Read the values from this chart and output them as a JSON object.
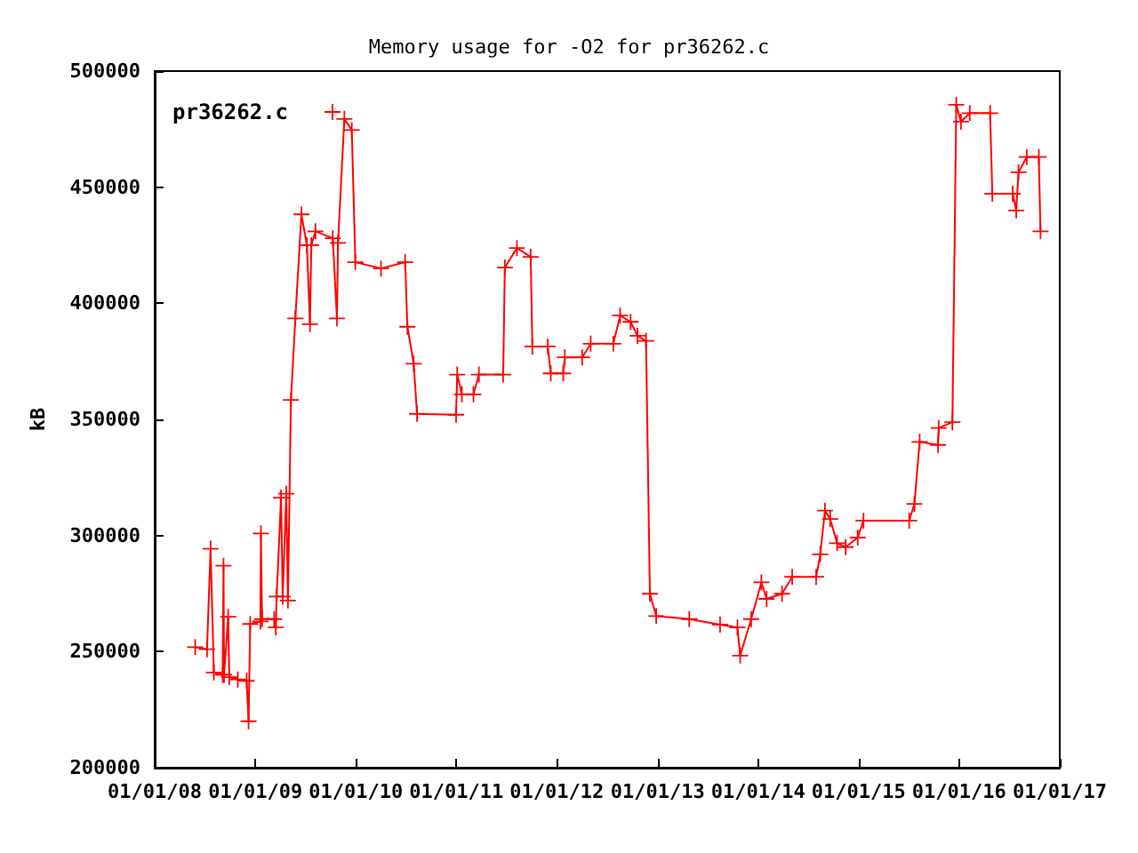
{
  "chart_data": {
    "type": "line",
    "title": "Memory usage for -O2 for pr36262.c",
    "ylabel": "kB",
    "xlim": [
      "2008-01-01",
      "2017-01-01"
    ],
    "xticks": [
      {
        "value": "2008-01-01",
        "label": "01/01/08"
      },
      {
        "value": "2009-01-01",
        "label": "01/01/09"
      },
      {
        "value": "2010-01-01",
        "label": "01/01/10"
      },
      {
        "value": "2011-01-01",
        "label": "01/01/11"
      },
      {
        "value": "2012-01-01",
        "label": "01/01/12"
      },
      {
        "value": "2013-01-01",
        "label": "01/01/13"
      },
      {
        "value": "2014-01-01",
        "label": "01/01/14"
      },
      {
        "value": "2015-01-01",
        "label": "01/01/15"
      },
      {
        "value": "2016-01-01",
        "label": "01/01/16"
      },
      {
        "value": "2017-01-01",
        "label": "01/01/17"
      }
    ],
    "ylim": [
      200000,
      500000
    ],
    "yticks": [
      200000,
      250000,
      300000,
      350000,
      400000,
      450000,
      500000
    ],
    "grid": false,
    "legend": "top left",
    "marker": "cross",
    "line_style": "solid",
    "x": [
      "2008-05-27",
      "2008-07-09",
      "2008-07-22",
      "2008-08-03",
      "2008-09-04",
      "2008-09-07",
      "2008-09-09",
      "2008-09-24",
      "2008-09-28",
      "2008-10-29",
      "2008-11-30",
      "2008-12-07",
      "2008-12-13",
      "2009-01-19",
      "2009-01-21",
      "2009-01-25",
      "2009-03-10",
      "2009-03-16",
      "2009-03-19",
      "2009-04-04",
      "2009-04-10",
      "2009-04-23",
      "2009-04-29",
      "2009-05-10",
      "2009-05-26",
      "2009-06-17",
      "2009-07-07",
      "2009-07-18",
      "2009-07-23",
      "2009-08-07",
      "2009-10-09",
      "2009-10-24",
      "2009-10-28",
      "2009-11-20",
      "2009-12-17",
      "2009-12-30",
      "2010-04-02",
      "2010-06-29",
      "2010-07-07",
      "2010-07-30",
      "2010-08-11",
      "2010-12-31",
      "2011-01-04",
      "2011-01-21",
      "2011-03-04",
      "2011-03-24",
      "2011-06-20",
      "2011-06-26",
      "2011-08-09",
      "2011-09-28",
      "2011-10-04",
      "2011-11-29",
      "2011-12-10",
      "2012-01-24",
      "2012-01-30",
      "2012-04-02",
      "2012-05-03",
      "2012-07-24",
      "2012-08-18",
      "2012-09-25",
      "2012-10-20",
      "2012-11-20",
      "2012-12-04",
      "2012-12-27",
      "2013-04-26",
      "2013-08-16",
      "2013-10-18",
      "2013-10-28",
      "2013-12-07",
      "2014-01-13",
      "2014-02-01",
      "2014-03-29",
      "2014-05-05",
      "2014-07-31",
      "2014-08-15",
      "2014-09-01",
      "2014-09-20",
      "2014-10-15",
      "2014-11-15",
      "2014-12-29",
      "2015-01-19",
      "2015-07-04",
      "2015-07-23",
      "2015-08-11",
      "2015-10-17",
      "2015-10-19",
      "2015-12-08",
      "2015-12-22",
      "2016-01-08",
      "2016-02-09",
      "2016-04-23",
      "2016-05-01",
      "2016-07-14",
      "2016-07-27",
      "2016-08-04",
      "2016-09-03",
      "2016-10-17",
      "2016-10-23"
    ],
    "series": [
      {
        "name": "pr36262.c",
        "color": "#ff0000",
        "values": [
          251900,
          251000,
          294300,
          241000,
          240000,
          287000,
          240000,
          265000,
          239000,
          238000,
          237400,
          220000,
          261900,
          263000,
          300900,
          264000,
          264000,
          260400,
          273700,
          316300,
          273700,
          318000,
          272000,
          358400,
          393500,
          438300,
          425000,
          391000,
          425000,
          431000,
          428000,
          393500,
          426000,
          479400,
          474600,
          417700,
          415000,
          417700,
          389900,
          374000,
          352400,
          352000,
          369300,
          360800,
          360800,
          369300,
          369300,
          415400,
          423800,
          420000,
          381400,
          381400,
          369800,
          369800,
          376700,
          376700,
          382600,
          382600,
          394700,
          392000,
          386000,
          383800,
          274900,
          265300,
          264000,
          261600,
          260400,
          248300,
          264000,
          279800,
          272700,
          274900,
          282200,
          282200,
          291900,
          310700,
          307100,
          296700,
          295000,
          299100,
          306400,
          306400,
          313600,
          340300,
          339000,
          346300,
          348800,
          485500,
          478200,
          481900,
          481900,
          447200,
          447200,
          440000,
          456400,
          463000,
          463000,
          431000
        ]
      }
    ]
  }
}
